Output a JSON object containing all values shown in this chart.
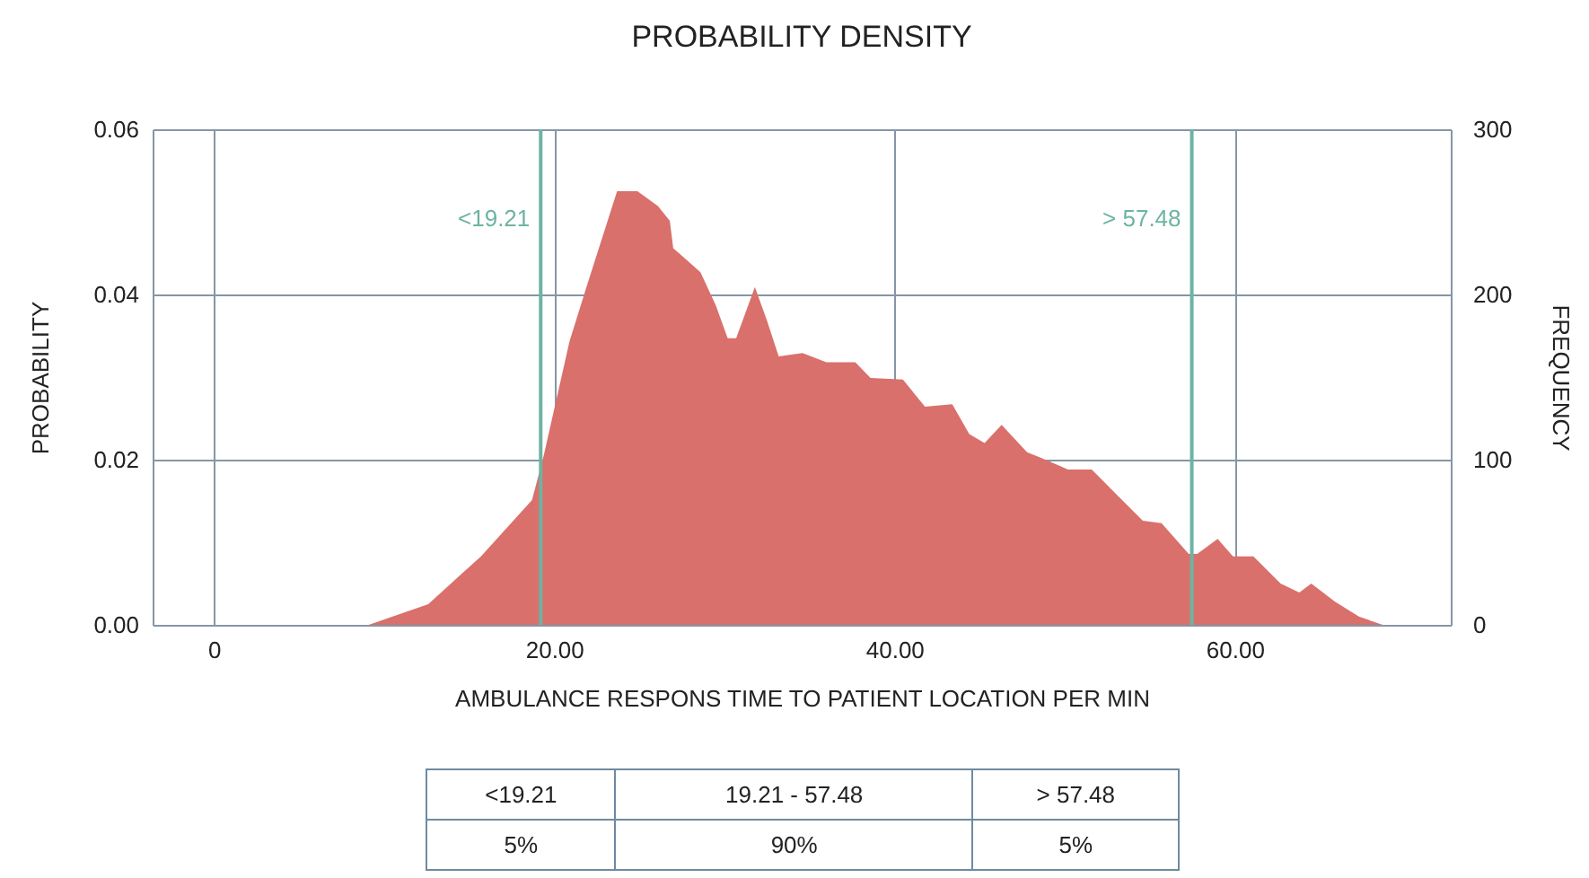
{
  "chart_data": {
    "type": "area",
    "title": "PROBABILITY DENSITY",
    "xlabel": "AMBULANCE RESPONS TIME TO PATIENT LOCATION PER MIN",
    "ylabel": "PROBABILITY",
    "y2label": "FREQUENCY",
    "x": [
      9.1,
      12.6,
      15.7,
      18.7,
      19.4,
      20.9,
      21.9,
      23.7,
      24.9,
      26.1,
      26.8,
      27.0,
      28.6,
      29.5,
      30.2,
      30.7,
      31.8,
      32.5,
      33.2,
      34.6,
      36.0,
      37.7,
      38.6,
      40.5,
      41.8,
      43.4,
      44.4,
      45.3,
      46.3,
      47.8,
      49.0,
      50.2,
      51.6,
      53.2,
      54.6,
      55.7,
      57.3,
      57.8,
      59.0,
      59.9,
      61.1,
      62.7,
      63.8,
      64.5,
      65.9,
      67.3,
      68.7
    ],
    "series": [
      {
        "color": "#d9706b",
        "values": [
          0,
          0.0025,
          0.0083,
          0.0151,
          0.0206,
          0.0343,
          0.0409,
          0.0525,
          0.0525,
          0.0507,
          0.0489,
          0.0456,
          0.0427,
          0.0387,
          0.0347,
          0.0347,
          0.0409,
          0.0369,
          0.0325,
          0.0329,
          0.0318,
          0.0318,
          0.0299,
          0.0297,
          0.0264,
          0.0267,
          0.0231,
          0.022,
          0.0242,
          0.0209,
          0.0199,
          0.0188,
          0.0188,
          0.0155,
          0.0126,
          0.0123,
          0.0086,
          0.0086,
          0.0104,
          0.0083,
          0.0083,
          0.005,
          0.0039,
          0.005,
          0.0028,
          0.001,
          0
        ]
      }
    ],
    "xlim": [
      -3.6,
      72.7
    ],
    "xticks": [
      0,
      {
        "value": 20,
        "label": "20.00"
      },
      {
        "value": 40,
        "label": "40.00"
      },
      {
        "value": 60,
        "label": "60.00"
      }
    ],
    "ylim": [
      0,
      0.06
    ],
    "yticks": [
      {
        "value": 0,
        "label": "0.00"
      },
      {
        "value": 0.02,
        "label": "0.02"
      },
      {
        "value": 0.04,
        "label": "0.04"
      },
      {
        "value": 0.06,
        "label": "0.06"
      }
    ],
    "y2lim": [
      0,
      300
    ],
    "y2ticks": [
      0,
      100,
      200,
      300
    ],
    "grid": true,
    "ref_lines": [
      {
        "axis": "x",
        "value": 19.21,
        "label": "<19.21",
        "color": "#6db3a3"
      },
      {
        "axis": "x",
        "value": 57.48,
        "label": "> 57.48",
        "color": "#6db3a3"
      }
    ],
    "annotations": [
      "<19.21",
      "19.21 - 57.48",
      "> 57.48",
      "5%",
      "90%",
      "5%"
    ]
  }
}
